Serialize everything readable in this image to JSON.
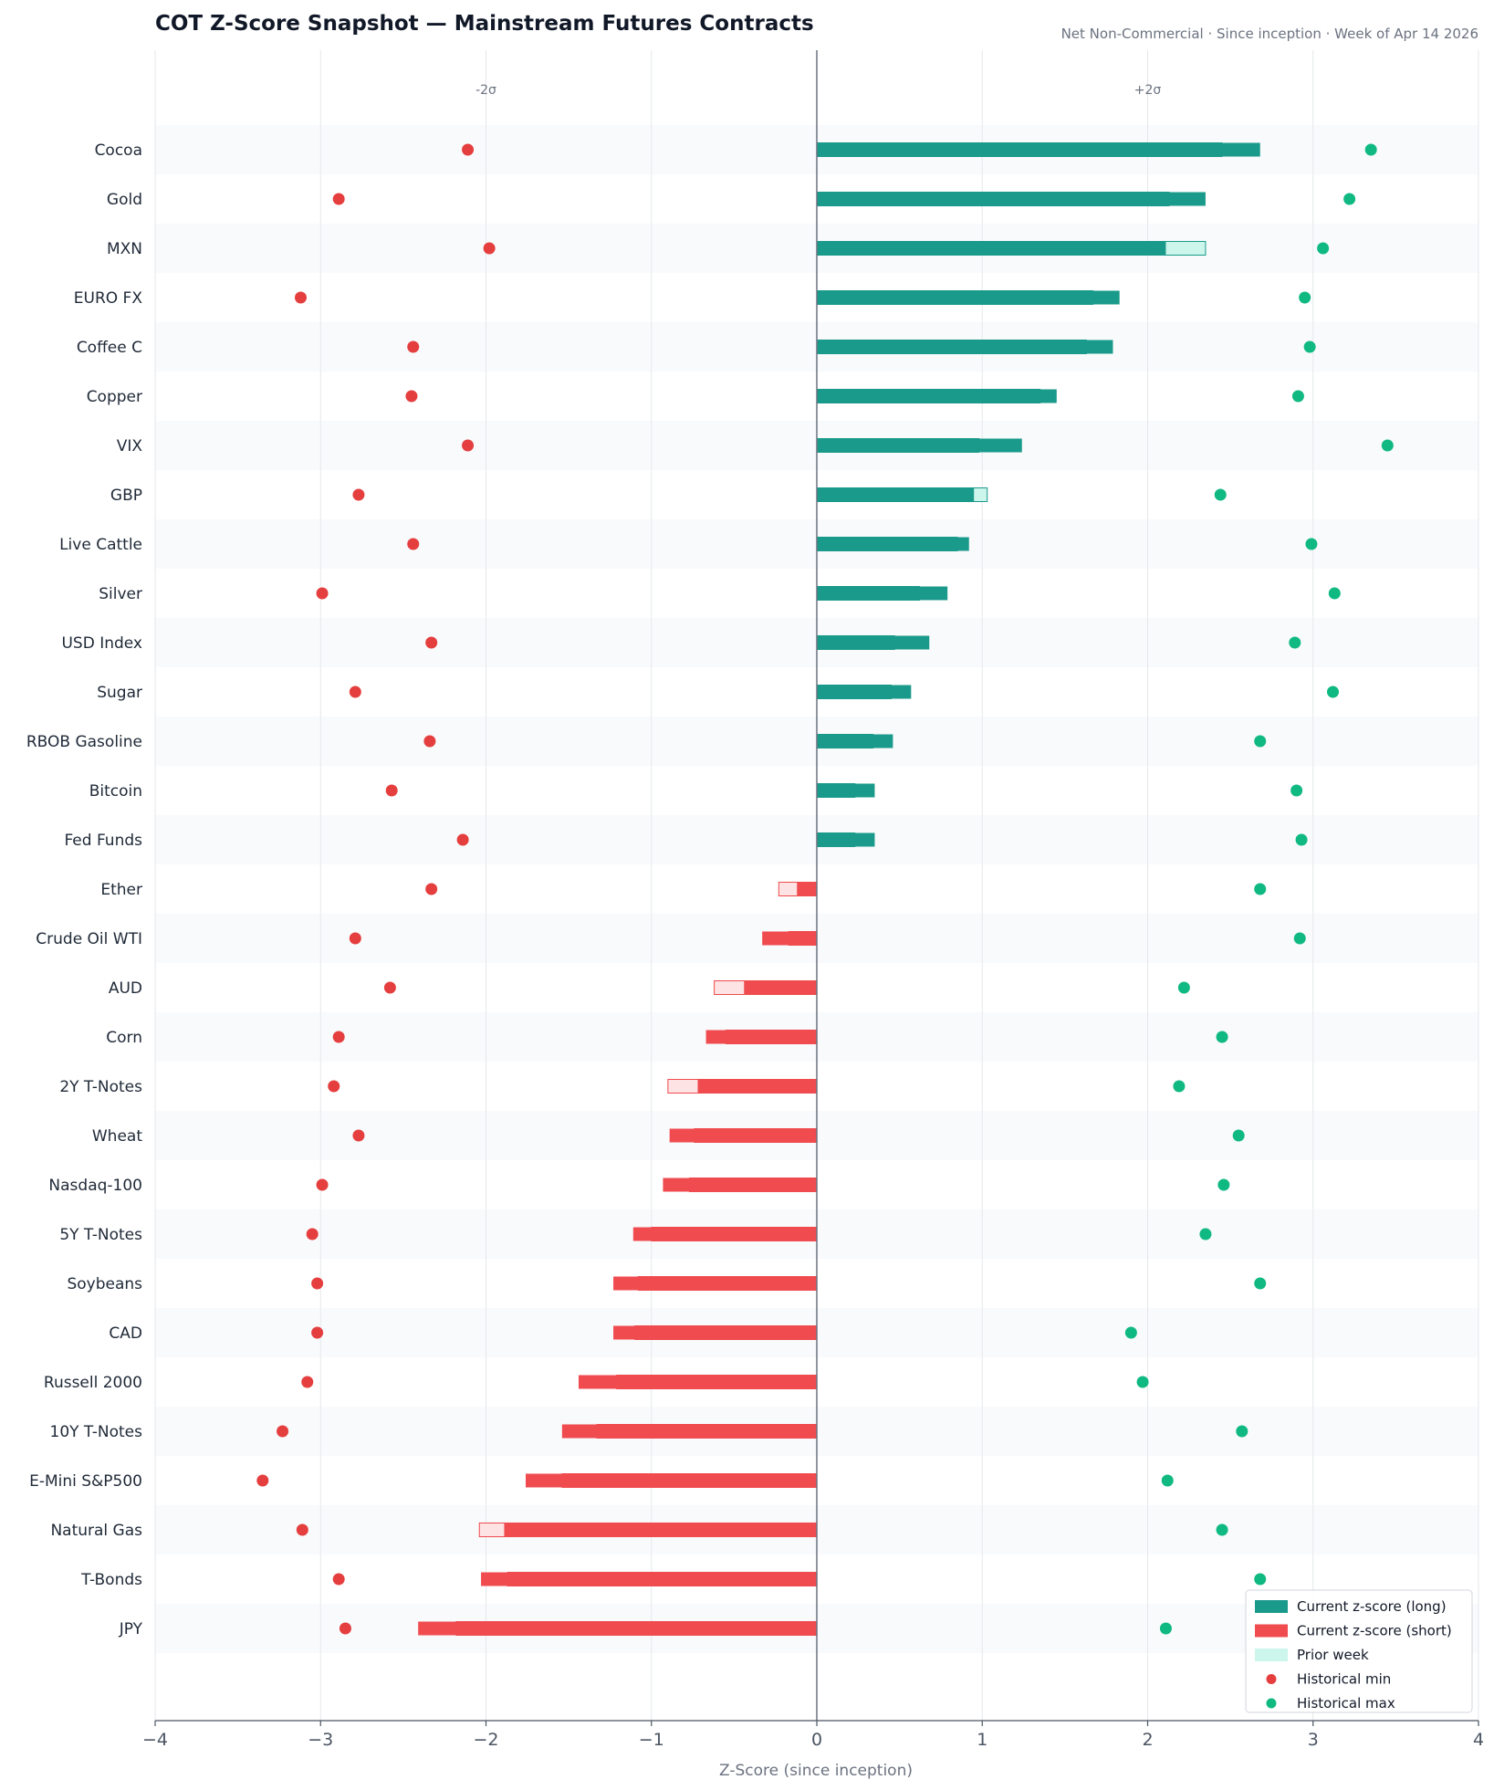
{
  "colors": {
    "long": "#1a9a8a",
    "short": "#f04b4f",
    "prior_long": "#ccf5ec",
    "prior_short": "#fde3e3",
    "hist_min": "#e53e3e",
    "hist_max": "#10b981",
    "band": "#f8fafc",
    "grid": "#e5e7eb",
    "zero": "#6b7280"
  },
  "chart_data": {
    "type": "bar",
    "orientation": "horizontal",
    "title": "COT Z-Score Snapshot — Mainstream Futures Contracts",
    "subtitle": "Net Non-Commercial · Since inception · Week of Apr 14 2026",
    "xlabel": "Z-Score (since inception)",
    "xlim": [
      -4,
      4
    ],
    "xticks": [
      "−4",
      "−3",
      "−2",
      "−1",
      "0",
      "1",
      "2",
      "3",
      "4"
    ],
    "grid": true,
    "annotations": [
      {
        "text": "-2σ",
        "x": -2
      },
      {
        "text": "+2σ",
        "x": 2
      }
    ],
    "legend": {
      "placement": "bottom-right",
      "entries": [
        {
          "label": "Current z-score (long)",
          "kind": "long"
        },
        {
          "label": "Current z-score (short)",
          "kind": "short"
        },
        {
          "label": "Prior week",
          "kind": "prior"
        },
        {
          "label": "Historical min",
          "kind": "min"
        },
        {
          "label": "Historical max",
          "kind": "max"
        }
      ]
    },
    "categories": [
      "Cocoa",
      "Gold",
      "MXN",
      "EURO FX",
      "Coffee C",
      "Copper",
      "VIX",
      "GBP",
      "Live Cattle",
      "Silver",
      "USD Index",
      "Sugar",
      "RBOB Gasoline",
      "Bitcoin",
      "Fed Funds",
      "Ether",
      "Crude Oil WTI",
      "AUD",
      "Corn",
      "2Y T-Notes",
      "Wheat",
      "Nasdaq-100",
      "5Y T-Notes",
      "Soybeans",
      "CAD",
      "Russell 2000",
      "10Y T-Notes",
      "E-Mini S&P500",
      "Natural Gas",
      "T-Bonds",
      "JPY"
    ],
    "series": [
      {
        "name": "Current z-score",
        "values": [
          2.68,
          2.35,
          2.11,
          1.83,
          1.79,
          1.45,
          1.24,
          0.95,
          0.92,
          0.79,
          0.68,
          0.57,
          0.46,
          0.35,
          0.35,
          -0.12,
          -0.33,
          -0.44,
          -0.67,
          -0.72,
          -0.89,
          -0.93,
          -1.11,
          -1.23,
          -1.23,
          -1.44,
          -1.54,
          -1.76,
          -1.89,
          -2.03,
          -2.41
        ]
      },
      {
        "name": "Prior week",
        "values": [
          2.45,
          2.13,
          2.35,
          1.67,
          1.63,
          1.35,
          0.98,
          1.03,
          0.85,
          0.62,
          0.47,
          0.45,
          0.34,
          0.23,
          0.23,
          -0.23,
          -0.17,
          -0.62,
          -0.55,
          -0.9,
          -0.74,
          -0.77,
          -1.0,
          -1.08,
          -1.1,
          -1.21,
          -1.33,
          -1.54,
          -2.04,
          -1.87,
          -2.18
        ]
      },
      {
        "name": "Historical min",
        "values": [
          -2.11,
          -2.89,
          -1.98,
          -3.12,
          -2.44,
          -2.45,
          -2.11,
          -2.77,
          -2.44,
          -2.99,
          -2.33,
          -2.79,
          -2.34,
          -2.57,
          -2.14,
          -2.33,
          -2.79,
          -2.58,
          -2.89,
          -2.92,
          -2.77,
          -2.99,
          -3.05,
          -3.02,
          -3.02,
          -3.08,
          -3.23,
          -3.35,
          -3.11,
          -2.89,
          -2.85
        ]
      },
      {
        "name": "Historical max",
        "values": [
          3.35,
          3.22,
          3.06,
          2.95,
          2.98,
          2.91,
          3.45,
          2.44,
          2.99,
          3.13,
          2.89,
          3.12,
          2.68,
          2.9,
          2.93,
          2.68,
          2.92,
          2.22,
          2.45,
          2.19,
          2.55,
          2.46,
          2.35,
          2.68,
          1.9,
          1.97,
          2.57,
          2.12,
          2.45,
          2.68,
          2.11
        ]
      }
    ]
  }
}
